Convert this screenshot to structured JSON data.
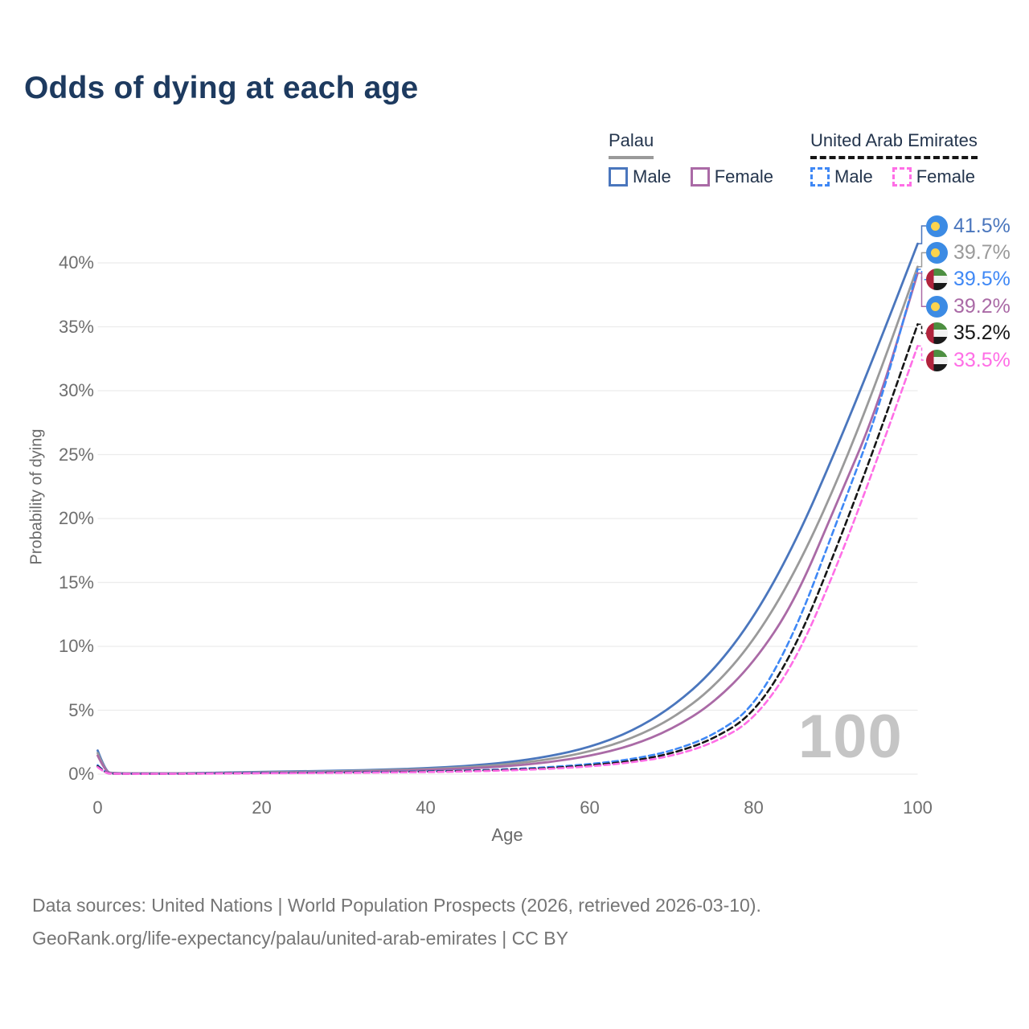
{
  "title": "Odds of dying at each age",
  "axes": {
    "x_label": "Age",
    "y_label": "Probability of dying"
  },
  "watermark": "100",
  "footer": {
    "line1": "Data sources: United Nations | World Population Prospects (2026, retrieved 2026-03-10).",
    "line2": "GeoRank.org/life-expectancy/palau/united-arab-emirates | CC BY"
  },
  "legend": {
    "groups": [
      {
        "name": "Palau",
        "underline_style": "solid",
        "underline_color": "#9a9a9a",
        "items": [
          {
            "label": "Male",
            "swatch_color": "#4a76bd",
            "swatch_style": "solid"
          },
          {
            "label": "Female",
            "swatch_color": "#aa6aa6",
            "swatch_style": "solid"
          }
        ]
      },
      {
        "name": "United Arab Emirates",
        "underline_style": "dashed",
        "underline_color": "#151515",
        "items": [
          {
            "label": "Male",
            "swatch_color": "#3f88f5",
            "swatch_style": "dashed"
          },
          {
            "label": "Female",
            "swatch_color": "#ff6ee6",
            "swatch_style": "dashed"
          }
        ]
      }
    ]
  },
  "chart_data": {
    "type": "line",
    "title": "Odds of dying at each age",
    "xlabel": "Age",
    "ylabel": "Probability of dying",
    "xlim": [
      0,
      100
    ],
    "ylim_pct": [
      0,
      40
    ],
    "x_ticks": [
      0,
      20,
      40,
      60,
      80,
      100
    ],
    "y_ticks_pct": [
      0,
      5,
      10,
      15,
      20,
      25,
      30,
      35,
      40
    ],
    "grid": "horizontal-only",
    "legend_position": "top-right",
    "age_cursor": "100",
    "x_ages": [
      0,
      1,
      2,
      5,
      10,
      15,
      20,
      25,
      30,
      35,
      40,
      45,
      50,
      55,
      60,
      65,
      70,
      75,
      80,
      85,
      90,
      95,
      100
    ],
    "series": [
      {
        "id": "palau-male",
        "country": "Palau",
        "sex": "Male",
        "color": "#4a76bd",
        "dashed": false,
        "end_value_pct": 41.5,
        "end_label": "41.5%",
        "values_pct": [
          1.85,
          0.15,
          0.08,
          0.06,
          0.06,
          0.12,
          0.18,
          0.22,
          0.28,
          0.35,
          0.46,
          0.63,
          0.92,
          1.38,
          2.1,
          3.3,
          5.2,
          8.0,
          12.2,
          18.0,
          25.3,
          33.2,
          41.5
        ]
      },
      {
        "id": "palau-both",
        "country": "Palau",
        "sex": "Both sexes",
        "color": "#9a9a9a",
        "dashed": false,
        "end_value_pct": 39.7,
        "end_label": "39.7%",
        "values_pct": [
          1.65,
          0.13,
          0.07,
          0.05,
          0.05,
          0.1,
          0.14,
          0.18,
          0.23,
          0.3,
          0.39,
          0.53,
          0.77,
          1.14,
          1.75,
          2.75,
          4.3,
          6.7,
          10.4,
          15.7,
          22.6,
          30.7,
          39.7
        ]
      },
      {
        "id": "palau-female",
        "country": "Palau",
        "sex": "Female",
        "color": "#aa6aa6",
        "dashed": false,
        "end_value_pct": 39.2,
        "end_label": "39.2%",
        "values_pct": [
          1.45,
          0.12,
          0.06,
          0.05,
          0.05,
          0.08,
          0.1,
          0.13,
          0.17,
          0.24,
          0.32,
          0.44,
          0.62,
          0.92,
          1.42,
          2.2,
          3.5,
          5.5,
          8.7,
          13.5,
          21.0,
          28.5,
          39.2
        ]
      },
      {
        "id": "uae-male",
        "country": "United Arab Emirates",
        "sex": "Male",
        "color": "#3f88f5",
        "dashed": true,
        "end_value_pct": 39.5,
        "end_label": "39.5%",
        "values_pct": [
          0.7,
          0.06,
          0.04,
          0.03,
          0.04,
          0.07,
          0.1,
          0.12,
          0.14,
          0.17,
          0.22,
          0.28,
          0.38,
          0.54,
          0.78,
          1.15,
          1.8,
          3.0,
          5.2,
          11.0,
          19.5,
          28.0,
          39.5
        ]
      },
      {
        "id": "uae-both",
        "country": "United Arab Emirates",
        "sex": "Both sexes",
        "color": "#161616",
        "dashed": true,
        "end_value_pct": 35.2,
        "end_label": "35.2%",
        "values_pct": [
          0.62,
          0.05,
          0.03,
          0.03,
          0.03,
          0.06,
          0.08,
          0.1,
          0.12,
          0.15,
          0.19,
          0.25,
          0.33,
          0.47,
          0.68,
          1.0,
          1.6,
          2.7,
          4.7,
          9.7,
          17.5,
          26.0,
          35.2
        ]
      },
      {
        "id": "uae-female",
        "country": "United Arab Emirates",
        "sex": "Female",
        "color": "#ff6ee6",
        "dashed": true,
        "end_value_pct": 33.5,
        "end_label": "33.5%",
        "values_pct": [
          0.55,
          0.05,
          0.03,
          0.02,
          0.03,
          0.05,
          0.07,
          0.08,
          0.1,
          0.13,
          0.16,
          0.21,
          0.29,
          0.41,
          0.6,
          0.9,
          1.4,
          2.4,
          4.2,
          8.7,
          16.0,
          24.5,
          33.5
        ]
      }
    ],
    "end_labels_top_to_bottom": [
      {
        "text": "41.5%",
        "flag": "palau",
        "color": "#4a76bd",
        "series": "palau-male"
      },
      {
        "text": "39.7%",
        "flag": "palau",
        "color": "#9a9a9a",
        "series": "palau-both"
      },
      {
        "text": "39.5%",
        "flag": "uae",
        "color": "#3f88f5",
        "series": "uae-male"
      },
      {
        "text": "39.2%",
        "flag": "palau",
        "color": "#aa6aa6",
        "series": "palau-female"
      },
      {
        "text": "35.2%",
        "flag": "uae",
        "color": "#161616",
        "series": "uae-both"
      },
      {
        "text": "33.5%",
        "flag": "uae",
        "color": "#ff6ee6",
        "series": "uae-female"
      }
    ]
  }
}
